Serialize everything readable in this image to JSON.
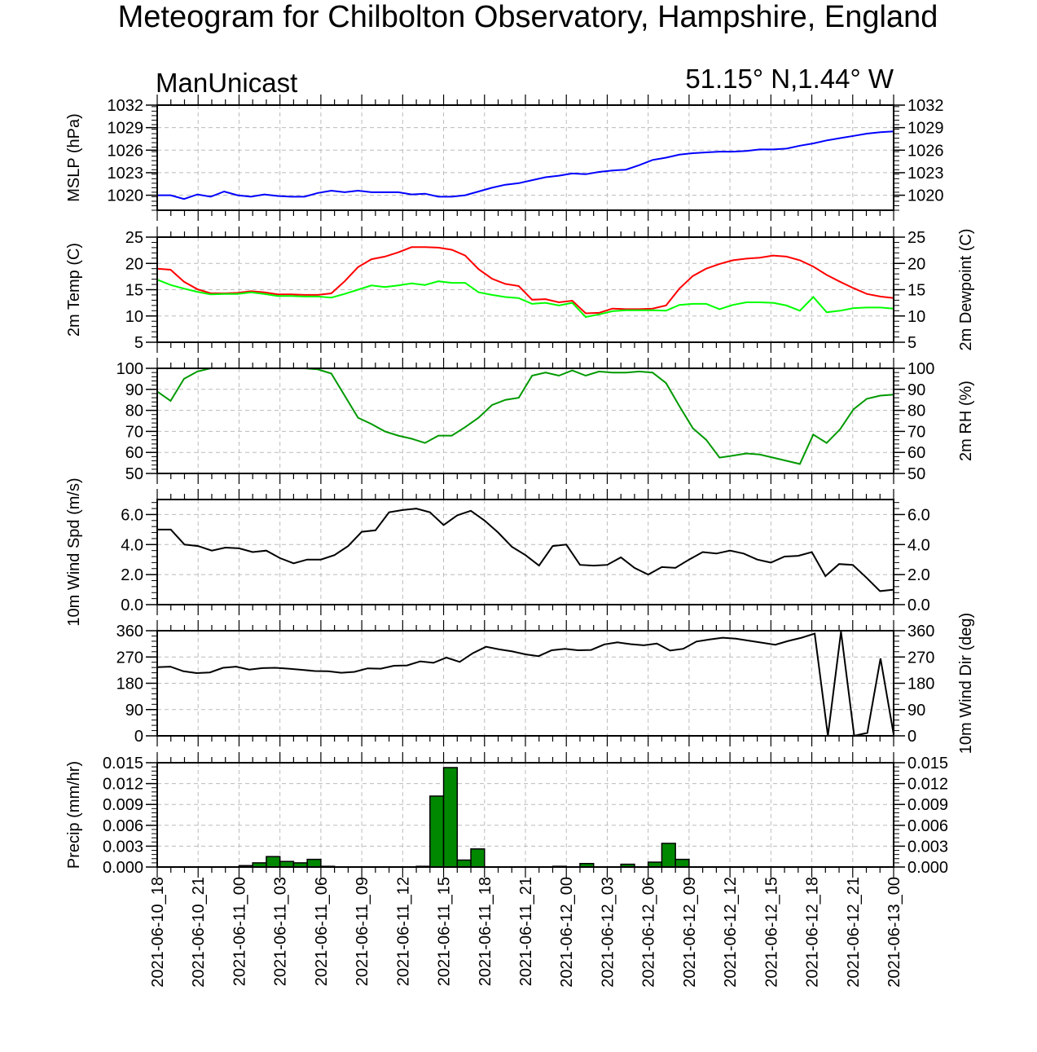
{
  "title": "Meteogram for Chilbolton Observatory, Hampshire, England",
  "model": "ManUnicast",
  "location": "51.15° N,1.44° W",
  "time_labels": [
    "2021-06-10_18",
    "2021-06-10_21",
    "2021-06-11_00",
    "2021-06-11_03",
    "2021-06-11_06",
    "2021-06-11_09",
    "2021-06-11_12",
    "2021-06-11_15",
    "2021-06-11_18",
    "2021-06-11_21",
    "2021-06-12_00",
    "2021-06-12_03",
    "2021-06-12_06",
    "2021-06-12_09",
    "2021-06-12_12",
    "2021-06-12_15",
    "2021-06-12_18",
    "2021-06-12_21",
    "2021-06-13_00"
  ],
  "chart_data": [
    {
      "type": "line",
      "ylabel": "MSLP (hPa)",
      "ylim": [
        1018,
        1032
      ],
      "yticks": [
        "1020",
        "1023",
        "1026",
        "1029",
        "1032"
      ],
      "right_ticks": true,
      "grid": true,
      "series": [
        {
          "color": "#0000ff",
          "values": [
            1020.0,
            1020.0,
            1019.5,
            1020.1,
            1019.8,
            1020.5,
            1020.0,
            1019.8,
            1020.1,
            1019.9,
            1019.8,
            1019.8,
            1020.3,
            1020.6,
            1020.4,
            1020.6,
            1020.4,
            1020.4,
            1020.4,
            1020.1,
            1020.2,
            1019.8,
            1019.8,
            1020.0,
            1020.5,
            1021.0,
            1021.4,
            1021.6,
            1022.0,
            1022.4,
            1022.6,
            1022.9,
            1022.8,
            1023.1,
            1023.3,
            1023.4,
            1024.0,
            1024.7,
            1025.0,
            1025.4,
            1025.6,
            1025.7,
            1025.8,
            1025.8,
            1025.9,
            1026.1,
            1026.1,
            1026.2,
            1026.6,
            1026.9,
            1027.3,
            1027.6,
            1027.9,
            1028.2,
            1028.4,
            1028.5
          ]
        }
      ]
    },
    {
      "type": "line",
      "ylabel": "2m Temp (C)",
      "ylabel_right": "2m Dewpoint (C)",
      "ylim": [
        5,
        25
      ],
      "yticks": [
        "5",
        "10",
        "15",
        "20",
        "25"
      ],
      "right_ticks": true,
      "grid": true,
      "series": [
        {
          "color": "#ff0000",
          "values": [
            19.0,
            18.8,
            16.5,
            15.1,
            14.3,
            14.3,
            14.4,
            14.7,
            14.5,
            14.1,
            14.1,
            14.0,
            14.0,
            14.3,
            16.6,
            19.3,
            20.8,
            21.3,
            22.1,
            23.1,
            23.1,
            23.0,
            22.6,
            21.5,
            18.9,
            17.1,
            16.1,
            15.7,
            13.1,
            13.2,
            12.6,
            12.9,
            10.5,
            10.6,
            11.4,
            11.3,
            11.3,
            11.4,
            12.0,
            15.2,
            17.6,
            19.0,
            19.9,
            20.6,
            20.9,
            21.1,
            21.5,
            21.3,
            20.6,
            19.4,
            17.8,
            16.5,
            15.3,
            14.2,
            13.7,
            13.4
          ]
        },
        {
          "color": "#00ff00",
          "values": [
            16.9,
            15.9,
            15.2,
            14.6,
            14.1,
            14.2,
            14.2,
            14.5,
            14.2,
            13.8,
            13.8,
            13.7,
            13.7,
            13.5,
            14.2,
            15.0,
            15.8,
            15.5,
            15.8,
            16.2,
            15.9,
            16.6,
            16.3,
            16.3,
            14.5,
            14.0,
            13.6,
            13.4,
            12.3,
            12.5,
            12.0,
            12.5,
            9.8,
            10.3,
            10.9,
            11.1,
            11.1,
            11.1,
            11.0,
            12.1,
            12.3,
            12.3,
            11.3,
            12.1,
            12.6,
            12.6,
            12.5,
            12.0,
            11.0,
            13.6,
            10.7,
            11.0,
            11.5,
            11.6,
            11.6,
            11.4
          ]
        }
      ]
    },
    {
      "type": "line",
      "ylabel": "",
      "ylabel_right": "2m RH (%)",
      "ylim": [
        50,
        100
      ],
      "yticks": [
        "50",
        "60",
        "70",
        "80",
        "90",
        "100"
      ],
      "right_ticks": true,
      "grid": true,
      "series": [
        {
          "color": "#009900",
          "values": [
            89.0,
            84.5,
            95.0,
            98.5,
            100.0,
            100.0,
            100.0,
            100.0,
            100.0,
            100.0,
            100.0,
            100.0,
            99.5,
            97.5,
            87.0,
            76.5,
            73.5,
            70.0,
            68.0,
            66.5,
            64.5,
            68.0,
            68.0,
            72.0,
            76.5,
            82.5,
            85.0,
            86.0,
            96.5,
            98.0,
            96.5,
            99.0,
            96.5,
            98.5,
            98.0,
            98.0,
            98.5,
            98.0,
            93.0,
            82.0,
            71.5,
            66.0,
            57.5,
            58.5,
            59.5,
            59.0,
            57.5,
            56.0,
            54.5,
            68.5,
            64.5,
            71.0,
            80.5,
            85.5,
            87.0,
            87.5
          ]
        }
      ]
    },
    {
      "type": "line",
      "ylabel": "10m Wind Spd (m/s)",
      "ylim": [
        0,
        7.0
      ],
      "yticks": [
        "0.0",
        "2.0",
        "4.0",
        "6.0"
      ],
      "right_ticks": true,
      "grid": true,
      "series": [
        {
          "color": "#000000",
          "values": [
            5.0,
            5.0,
            4.0,
            3.9,
            3.6,
            3.8,
            3.75,
            3.5,
            3.6,
            3.1,
            2.75,
            3.0,
            3.0,
            3.3,
            3.9,
            4.85,
            4.95,
            6.15,
            6.3,
            6.4,
            6.15,
            5.3,
            5.95,
            6.25,
            5.6,
            4.8,
            3.85,
            3.3,
            2.6,
            3.9,
            4.0,
            2.65,
            2.6,
            2.65,
            3.15,
            2.45,
            2.0,
            2.5,
            2.45,
            3.0,
            3.5,
            3.4,
            3.6,
            3.4,
            3.0,
            2.8,
            3.2,
            3.25,
            3.5,
            1.9,
            2.7,
            2.65,
            1.8,
            0.9,
            1.0
          ]
        }
      ]
    },
    {
      "type": "line",
      "ylabel": "",
      "ylabel_right": "10m Wind Dir (deg)",
      "ylim": [
        0,
        360
      ],
      "yticks": [
        "0",
        "90",
        "180",
        "270",
        "360"
      ],
      "right_ticks": true,
      "grid": true,
      "series": [
        {
          "color": "#000000",
          "values": [
            235,
            237,
            221,
            215,
            217,
            233,
            237,
            227,
            232,
            233,
            230,
            226,
            222,
            221,
            216,
            219,
            231,
            230,
            240,
            241,
            255,
            250,
            268,
            253,
            283,
            305,
            296,
            289,
            279,
            273,
            293,
            298,
            293,
            294,
            313,
            320,
            314,
            310,
            316,
            292,
            298,
            323,
            330,
            336,
            333,
            326,
            319,
            312,
            325,
            336,
            350,
            0,
            357,
            0,
            10,
            265,
            5
          ]
        }
      ]
    },
    {
      "type": "bar",
      "ylabel": "Precip (mm/hr)",
      "ylim": [
        0,
        0.015
      ],
      "yticks": [
        "0.000",
        "0.003",
        "0.006",
        "0.009",
        "0.012",
        "0.015"
      ],
      "right_ticks": true,
      "grid": true,
      "bar_color": "#008800",
      "values": [
        0,
        0,
        0,
        0,
        0,
        0,
        0.0002,
        0.0006,
        0.0015,
        0.0008,
        0.0006,
        0.0011,
        0.0001,
        0,
        0,
        0,
        0,
        0,
        0,
        0.0001,
        0.0102,
        0.0143,
        0.001,
        0.0026,
        0,
        0,
        0,
        0,
        0,
        0.0001,
        0,
        0.0005,
        0,
        0,
        0.0004,
        0,
        0.0007,
        0.0034,
        0.0011,
        0,
        0,
        0,
        0,
        0,
        0,
        0,
        0,
        0,
        0,
        0,
        0,
        0,
        0,
        0,
        0
      ]
    }
  ]
}
